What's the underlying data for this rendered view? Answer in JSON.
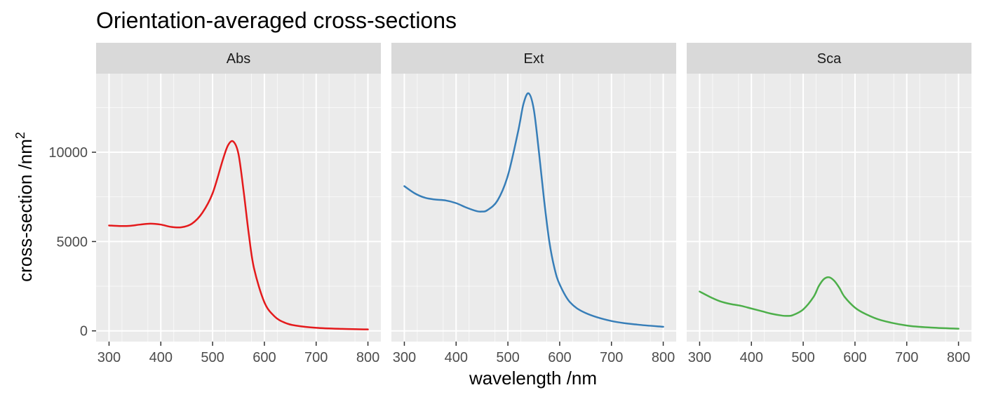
{
  "chart_data": {
    "type": "line",
    "title": "Orientation-averaged cross-sections",
    "xlabel": "wavelength /nm",
    "ylabel": "cross-section /nm",
    "ylabel_superscript": "2",
    "xlim": [
      275,
      825
    ],
    "ylim": [
      -600,
      14400
    ],
    "x_ticks": [
      300,
      400,
      500,
      600,
      700,
      800
    ],
    "y_ticks": [
      0,
      5000,
      10000
    ],
    "grid": true,
    "legend": "none",
    "colors": {
      "panel_background": "#ebebeb",
      "strip_background": "#d9d9d9",
      "grid": "#ffffff",
      "Abs": "#e41a1c",
      "Ext": "#377eb8",
      "Sca": "#4daf4a"
    },
    "panels": [
      {
        "name": "Abs",
        "x": [
          300,
          320,
          340,
          360,
          380,
          400,
          420,
          440,
          460,
          480,
          500,
          520,
          530,
          540,
          550,
          560,
          570,
          580,
          600,
          620,
          640,
          660,
          700,
          750,
          800
        ],
        "y": [
          5900,
          5870,
          5880,
          5950,
          6000,
          5950,
          5820,
          5800,
          6000,
          6600,
          7700,
          9600,
          10400,
          10600,
          9900,
          7800,
          5400,
          3500,
          1600,
          800,
          450,
          300,
          170,
          110,
          80
        ]
      },
      {
        "name": "Ext",
        "x": [
          300,
          320,
          340,
          360,
          380,
          400,
          420,
          440,
          450,
          460,
          480,
          500,
          520,
          530,
          540,
          550,
          560,
          570,
          580,
          590,
          600,
          620,
          650,
          700,
          750,
          800
        ],
        "y": [
          8100,
          7700,
          7450,
          7350,
          7300,
          7150,
          6900,
          6700,
          6680,
          6750,
          7300,
          8700,
          11200,
          12700,
          13300,
          12400,
          10000,
          7300,
          5000,
          3500,
          2600,
          1600,
          1000,
          550,
          350,
          230
        ]
      },
      {
        "name": "Sca",
        "x": [
          300,
          320,
          340,
          360,
          380,
          400,
          420,
          440,
          460,
          470,
          480,
          500,
          520,
          530,
          540,
          550,
          560,
          570,
          580,
          600,
          620,
          650,
          700,
          750,
          800
        ],
        "y": [
          2200,
          1900,
          1650,
          1500,
          1400,
          1250,
          1100,
          950,
          850,
          840,
          880,
          1200,
          1900,
          2500,
          2900,
          3000,
          2800,
          2400,
          1900,
          1300,
          950,
          600,
          300,
          180,
          120
        ]
      }
    ]
  }
}
